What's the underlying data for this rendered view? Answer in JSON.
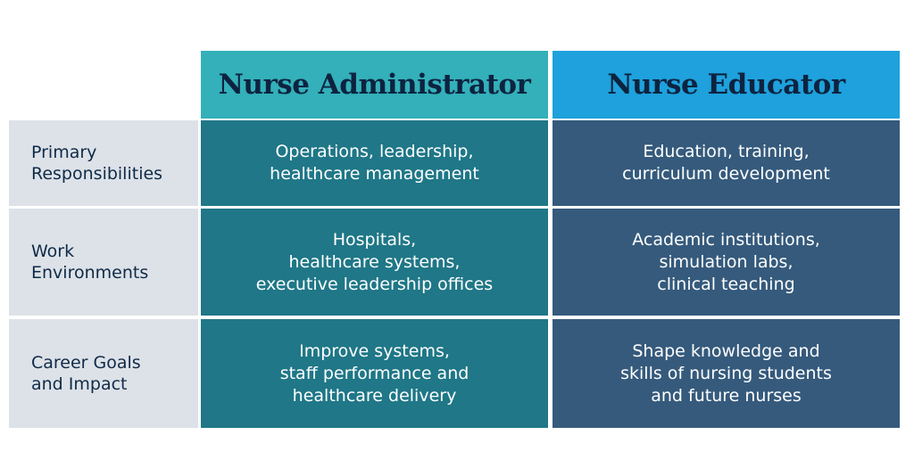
{
  "columns": [
    {
      "title": "Nurse Administrator",
      "header_color": "#33b0b9",
      "body_color": "#1f7787"
    },
    {
      "title": "Nurse Educator",
      "header_color": "#1ea1dc",
      "body_color": "#355a7c"
    }
  ],
  "rows": [
    {
      "label": "Primary\nResponsibilities",
      "administrator": "Operations, leadership,\nhealthcare management",
      "educator": "Education, training,\ncurriculum development"
    },
    {
      "label": "Work\nEnvironments",
      "administrator": "Hospitals,\nhealthcare systems,\nexecutive leadership offices",
      "educator": "Academic institutions,\nsimulation labs,\nclinical teaching"
    },
    {
      "label": "Career Goals\nand Impact",
      "administrator": "Improve systems,\nstaff performance and\nhealthcare delivery",
      "educator": "Shape knowledge and\nskills of nursing students\nand future nurses"
    }
  ]
}
